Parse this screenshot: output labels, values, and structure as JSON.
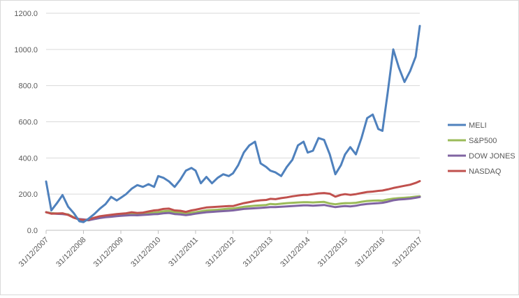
{
  "chart_data": {
    "type": "line",
    "title": "",
    "xlabel": "",
    "ylabel": "",
    "ylim": [
      0,
      1200
    ],
    "y_ticks": [
      0,
      200,
      400,
      600,
      800,
      1000,
      1200
    ],
    "y_tick_labels": [
      "0.0",
      "200.0",
      "400.0",
      "600.0",
      "800.0",
      "1000.0",
      "1200.0"
    ],
    "x_tick_labels": [
      "31/12/2007",
      "31/12/2008",
      "31/12/2009",
      "31/12/2010",
      "31/12/2011",
      "31/12/2012",
      "31/12/2013",
      "31/12/2014",
      "31/12/2015",
      "31/12/2016",
      "31/12/2017"
    ],
    "x_label_angle": -45,
    "grid": "horizontal",
    "legend": "right",
    "x": [
      2007.96,
      2008.1,
      2008.25,
      2008.4,
      2008.55,
      2008.7,
      2008.85,
      2008.96,
      2009.1,
      2009.25,
      2009.4,
      2009.55,
      2009.7,
      2009.85,
      2009.96,
      2010.1,
      2010.25,
      2010.4,
      2010.55,
      2010.7,
      2010.85,
      2010.96,
      2011.1,
      2011.25,
      2011.4,
      2011.55,
      2011.7,
      2011.85,
      2011.96,
      2012.1,
      2012.25,
      2012.4,
      2012.55,
      2012.7,
      2012.85,
      2012.96,
      2013.1,
      2013.25,
      2013.4,
      2013.55,
      2013.7,
      2013.85,
      2013.96,
      2014.1,
      2014.25,
      2014.4,
      2014.55,
      2014.7,
      2014.85,
      2014.96,
      2015.1,
      2015.25,
      2015.4,
      2015.55,
      2015.7,
      2015.85,
      2015.96,
      2016.1,
      2016.25,
      2016.4,
      2016.55,
      2016.7,
      2016.85,
      2016.96,
      2017.1,
      2017.25,
      2017.4,
      2017.55,
      2017.7,
      2017.85,
      2017.96
    ],
    "series": [
      {
        "name": "MELI",
        "color": "#4f81bd",
        "values": [
          270,
          110,
          150,
          195,
          130,
          95,
          50,
          45,
          65,
          90,
          120,
          145,
          185,
          165,
          180,
          200,
          230,
          250,
          240,
          255,
          240,
          300,
          290,
          270,
          240,
          280,
          330,
          345,
          330,
          260,
          295,
          260,
          290,
          310,
          300,
          315,
          360,
          430,
          470,
          490,
          370,
          350,
          330,
          320,
          300,
          350,
          390,
          470,
          490,
          430,
          440,
          510,
          500,
          420,
          310,
          360,
          420,
          460,
          420,
          510,
          620,
          640,
          560,
          550,
          760,
          1000,
          900,
          820,
          880,
          960,
          1130
        ]
      },
      {
        "name": "S&P500",
        "color": "#9bbb59",
        "values": [
          100,
          95,
          93,
          92,
          88,
          72,
          58,
          57,
          55,
          65,
          70,
          75,
          78,
          82,
          86,
          88,
          92,
          90,
          93,
          96,
          98,
          100,
          105,
          107,
          100,
          98,
          92,
          97,
          100,
          105,
          110,
          112,
          114,
          117,
          120,
          120,
          125,
          130,
          133,
          136,
          138,
          140,
          146,
          144,
          147,
          150,
          152,
          154,
          155,
          155,
          154,
          156,
          157,
          148,
          144,
          148,
          150,
          150,
          152,
          158,
          162,
          164,
          165,
          164,
          170,
          175,
          178,
          180,
          182,
          186,
          188
        ]
      },
      {
        "name": "DOW JONES",
        "color": "#8064a2",
        "values": [
          100,
          93,
          91,
          90,
          86,
          70,
          62,
          60,
          56,
          62,
          68,
          72,
          75,
          78,
          80,
          82,
          84,
          83,
          85,
          87,
          89,
          90,
          94,
          96,
          90,
          88,
          84,
          88,
          92,
          96,
          100,
          102,
          104,
          106,
          108,
          110,
          114,
          118,
          120,
          122,
          124,
          126,
          128,
          128,
          130,
          132,
          134,
          136,
          138,
          138,
          136,
          138,
          140,
          134,
          128,
          132,
          134,
          132,
          136,
          142,
          146,
          148,
          150,
          152,
          158,
          166,
          170,
          172,
          175,
          180,
          184
        ]
      },
      {
        "name": "NASDAQ",
        "color": "#c0504d",
        "values": [
          100,
          92,
          93,
          94,
          85,
          70,
          60,
          57,
          60,
          70,
          78,
          82,
          86,
          90,
          92,
          94,
          100,
          96,
          98,
          104,
          110,
          112,
          118,
          120,
          110,
          108,
          102,
          110,
          114,
          120,
          126,
          128,
          130,
          132,
          134,
          134,
          142,
          150,
          156,
          162,
          166,
          168,
          174,
          172,
          178,
          182,
          188,
          192,
          196,
          196,
          200,
          204,
          206,
          202,
          186,
          196,
          200,
          196,
          200,
          206,
          212,
          214,
          218,
          220,
          226,
          234,
          240,
          246,
          252,
          262,
          272
        ]
      }
    ]
  }
}
